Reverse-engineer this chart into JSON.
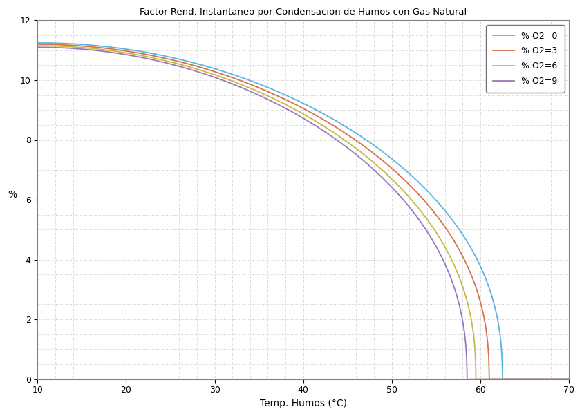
{
  "title": "Factor Rend. Instantaneo por Condensacion de Humos con Gas Natural",
  "xlabel": "Temp. Humos (°C)",
  "ylabel": "%",
  "xlim": [
    10,
    70
  ],
  "ylim": [
    0,
    12
  ],
  "xticks": [
    10,
    20,
    30,
    40,
    50,
    60,
    70
  ],
  "yticks": [
    0,
    2,
    4,
    6,
    8,
    10,
    12
  ],
  "background_color": "#ffffff",
  "grid_color": "#c8c8c8",
  "series": [
    {
      "label": "% O2=0",
      "color": "#5ab4e0",
      "dew_point": 62.5,
      "start_value": 11.25,
      "shape_power": 2.8
    },
    {
      "label": "% O2=3",
      "color": "#d4734a",
      "dew_point": 61.0,
      "start_value": 11.2,
      "shape_power": 2.8
    },
    {
      "label": "% O2=6",
      "color": "#c8b840",
      "dew_point": 59.5,
      "start_value": 11.15,
      "shape_power": 2.8
    },
    {
      "label": "% O2=9",
      "color": "#9878b8",
      "dew_point": 58.5,
      "start_value": 11.1,
      "shape_power": 2.8
    }
  ]
}
